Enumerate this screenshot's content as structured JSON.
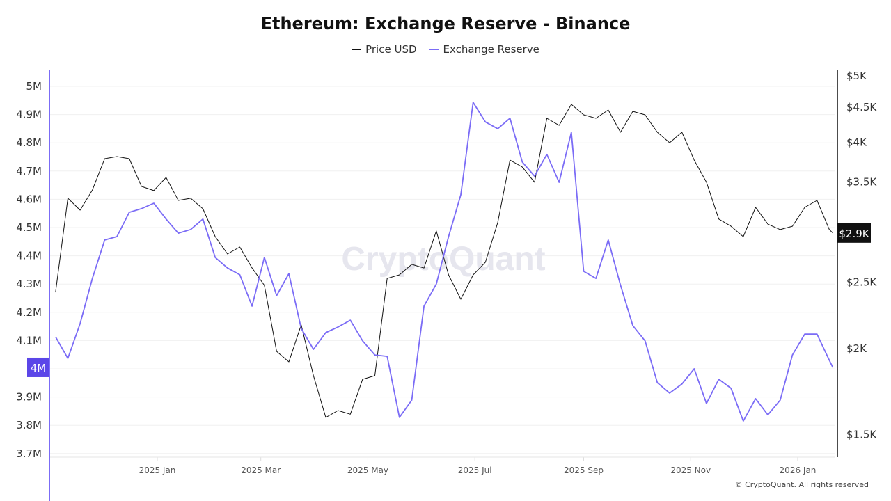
{
  "chart_data": {
    "type": "line",
    "title": "Ethereum: Exchange Reserve - Binance",
    "legend_position": "top-center",
    "grid": true,
    "watermark": "CryptoQuant",
    "footer": "© CryptoQuant. All rights reserved",
    "x_ticks": [
      {
        "date": "2025-01-01",
        "label": "2025 Jan"
      },
      {
        "date": "2025-03-01",
        "label": "2025 Mar"
      },
      {
        "date": "2025-05-01",
        "label": "2025 May"
      },
      {
        "date": "2025-07-01",
        "label": "2025 Jul"
      },
      {
        "date": "2025-09-01",
        "label": "2025 Sep"
      },
      {
        "date": "2025-11-01",
        "label": "2025 Nov"
      },
      {
        "date": "2026-01-01",
        "label": "2026 Jan"
      }
    ],
    "left_axis": {
      "scale": "linear",
      "ylim": [
        3700000,
        5000000
      ],
      "ticks": [
        {
          "v": 5000000,
          "label": "5M"
        },
        {
          "v": 4900000,
          "label": "4.9M"
        },
        {
          "v": 4800000,
          "label": "4.8M"
        },
        {
          "v": 4700000,
          "label": "4.7M"
        },
        {
          "v": 4600000,
          "label": "4.6M"
        },
        {
          "v": 4500000,
          "label": "4.5M"
        },
        {
          "v": 4400000,
          "label": "4.4M"
        },
        {
          "v": 4300000,
          "label": "4.3M"
        },
        {
          "v": 4200000,
          "label": "4.2M"
        },
        {
          "v": 4100000,
          "label": "4.1M"
        },
        {
          "v": 3900000,
          "label": "3.9M"
        },
        {
          "v": 3800000,
          "label": "3.8M"
        },
        {
          "v": 3700000,
          "label": "3.7M"
        }
      ],
      "current_label": "4M"
    },
    "right_axis": {
      "scale": "log",
      "ticks": [
        {
          "v": 5000,
          "label": "$5K"
        },
        {
          "v": 4500,
          "label": "$4.5K"
        },
        {
          "v": 4000,
          "label": "$4K"
        },
        {
          "v": 3500,
          "label": "$3.5K"
        },
        {
          "v": 2500,
          "label": "$2.5K"
        },
        {
          "v": 2000,
          "label": "$2K"
        },
        {
          "v": 1500,
          "label": "$1.5K"
        }
      ],
      "current_label": "$2.9K"
    },
    "dates": [
      "2024-11-04",
      "2024-11-11",
      "2024-11-18",
      "2024-11-25",
      "2024-12-02",
      "2024-12-09",
      "2024-12-16",
      "2024-12-23",
      "2024-12-30",
      "2025-01-06",
      "2025-01-13",
      "2025-01-20",
      "2025-01-27",
      "2025-02-03",
      "2025-02-10",
      "2025-02-17",
      "2025-02-24",
      "2025-03-03",
      "2025-03-10",
      "2025-03-17",
      "2025-03-24",
      "2025-03-31",
      "2025-04-07",
      "2025-04-14",
      "2025-04-21",
      "2025-04-28",
      "2025-05-05",
      "2025-05-12",
      "2025-05-19",
      "2025-05-26",
      "2025-06-02",
      "2025-06-09",
      "2025-06-16",
      "2025-06-23",
      "2025-06-30",
      "2025-07-07",
      "2025-07-14",
      "2025-07-21",
      "2025-07-28",
      "2025-08-04",
      "2025-08-11",
      "2025-08-18",
      "2025-08-25",
      "2025-09-01",
      "2025-09-08",
      "2025-09-15",
      "2025-09-22",
      "2025-09-29",
      "2025-10-06",
      "2025-10-13",
      "2025-10-20",
      "2025-10-27",
      "2025-11-03",
      "2025-11-10",
      "2025-11-17",
      "2025-11-24",
      "2025-12-01",
      "2025-12-08",
      "2025-12-15",
      "2025-12-22",
      "2025-12-29",
      "2026-01-05",
      "2026-01-12",
      "2026-01-19",
      "2026-01-21"
    ],
    "series": [
      {
        "name": "Price USD",
        "axis": "right",
        "color": "#111111",
        "values": [
          2417,
          3315,
          3185,
          3408,
          3786,
          3813,
          3786,
          3449,
          3401,
          3555,
          3291,
          3315,
          3200,
          2914,
          2749,
          2814,
          2623,
          2475,
          1982,
          1914,
          2167,
          1827,
          1588,
          1625,
          1605,
          1805,
          1827,
          2533,
          2563,
          2655,
          2623,
          2970,
          2563,
          2362,
          2563,
          2674,
          3054,
          3768,
          3682,
          3498,
          4336,
          4235,
          4543,
          4387,
          4336,
          4459,
          4138,
          4438,
          4387,
          4138,
          3994,
          4138,
          3768,
          3498,
          3091,
          3018,
          2914,
          3215,
          3039,
          2984,
          3018,
          3215,
          3291,
          2984,
          2950
        ]
      },
      {
        "name": "Exchange Reserve",
        "axis": "left",
        "color": "#7b6cf6",
        "values": [
          4113000,
          4037000,
          4160000,
          4320000,
          4456000,
          4468000,
          4554000,
          4567000,
          4586000,
          4530000,
          4480000,
          4493000,
          4530000,
          4394000,
          4357000,
          4333000,
          4222000,
          4394000,
          4259000,
          4337000,
          4143000,
          4069000,
          4128000,
          4148000,
          4172000,
          4099000,
          4049000,
          4044000,
          3828000,
          3889000,
          4222000,
          4300000,
          4468000,
          4616000,
          4943000,
          4874000,
          4850000,
          4887000,
          4732000,
          4682000,
          4759000,
          4660000,
          4837000,
          4345000,
          4320000,
          4456000,
          4296000,
          4153000,
          4099000,
          3951000,
          3914000,
          3946000,
          4000000,
          3877000,
          3963000,
          3931000,
          3815000,
          3894000,
          3837000,
          3889000,
          4049000,
          4123000,
          4123000,
          4030000,
          4005000
        ]
      }
    ]
  }
}
